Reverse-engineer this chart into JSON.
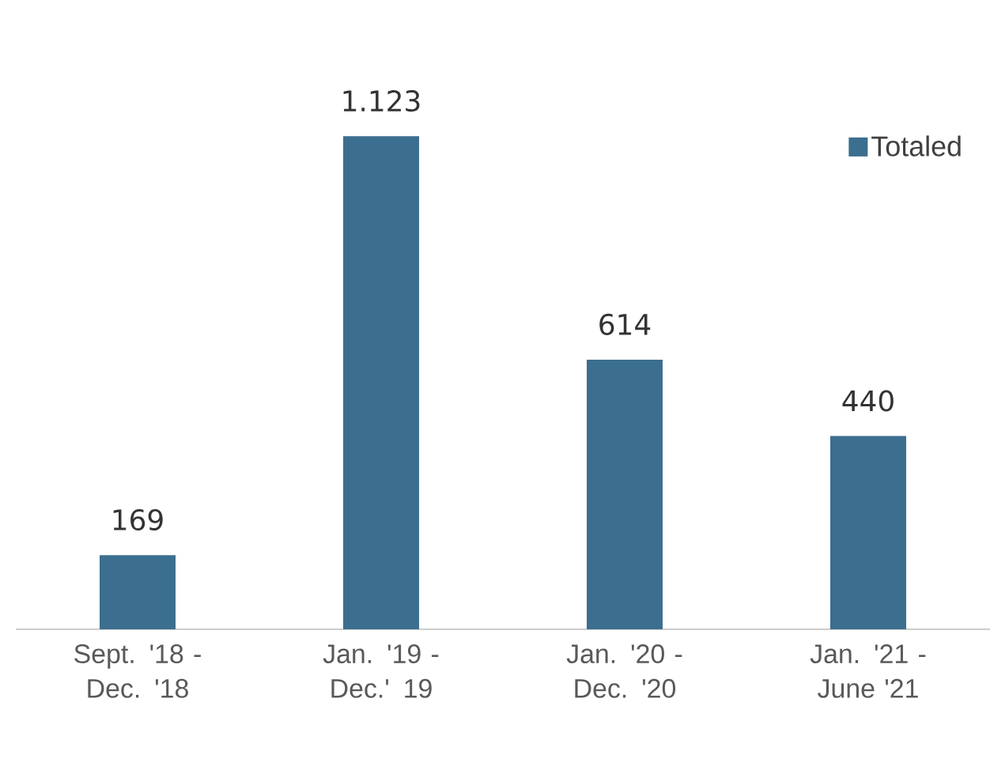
{
  "chart_data": {
    "type": "bar",
    "categories": [
      "Sept. '18 - Dec. '18",
      "Jan. '19 - Dec.' 19",
      "Jan. '20 - Dec. '20",
      "Jan. '21 - June '21"
    ],
    "series": [
      {
        "name": "Totaled",
        "color": "#3c6e8f",
        "values": [
          169,
          1123,
          614,
          440
        ],
        "value_labels": [
          "169",
          "1.123",
          "614",
          "440"
        ]
      }
    ],
    "legend": "top right"
  }
}
